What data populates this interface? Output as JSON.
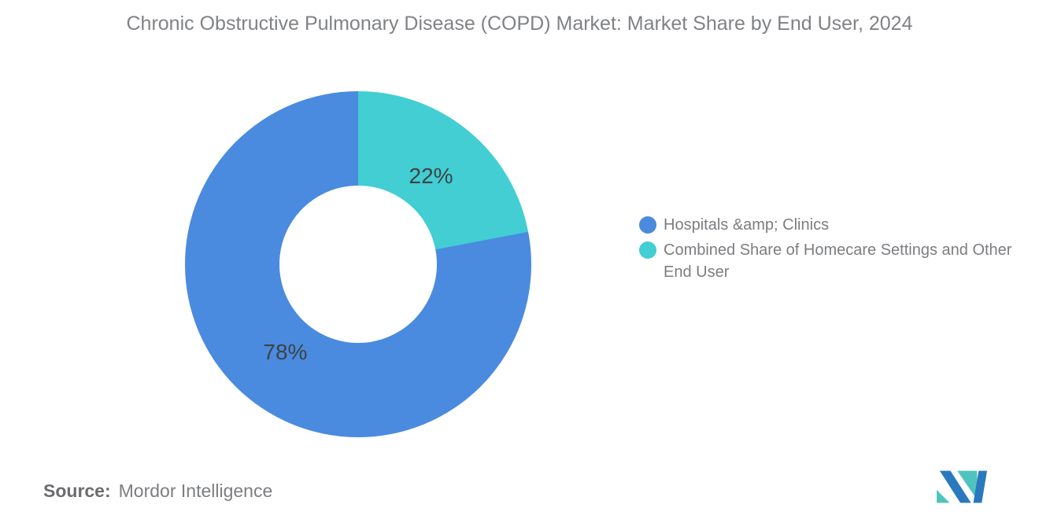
{
  "title": "Chronic Obstructive Pulmonary Disease (COPD) Market: Market Share by End User, 2024",
  "chart_data": {
    "type": "pie",
    "subtype": "donut",
    "title": "Chronic Obstructive Pulmonary Disease (COPD) Market: Market Share by End User, 2024",
    "start_angle_deg": 0,
    "direction": "clockwise",
    "inner_radius_ratio": 0.455,
    "label_radius_ratio": 0.66,
    "legend_position": "right",
    "grid": false,
    "slices": [
      {
        "name": "Combined Share of Homecare Settings and Other End User",
        "value": 22,
        "label": "22%",
        "color": "#42CED2"
      },
      {
        "name": "Hospitals &amp; Clinics",
        "value": 78,
        "label": "78%",
        "color": "#4A8BDF"
      }
    ]
  },
  "legend": {
    "items": [
      {
        "label": "Hospitals &amp; Clinics",
        "color": "#4A8BDF"
      },
      {
        "label": "Combined Share of Homecare Settings and Other End User",
        "color": "#42CED2"
      }
    ]
  },
  "footer": {
    "source_label": "Source:",
    "source_value": "Mordor Intelligence",
    "logo_name": "mordor-intelligence-logo",
    "logo_colors": {
      "blue": "#2A79BE",
      "teal": "#4FC4BE"
    }
  }
}
